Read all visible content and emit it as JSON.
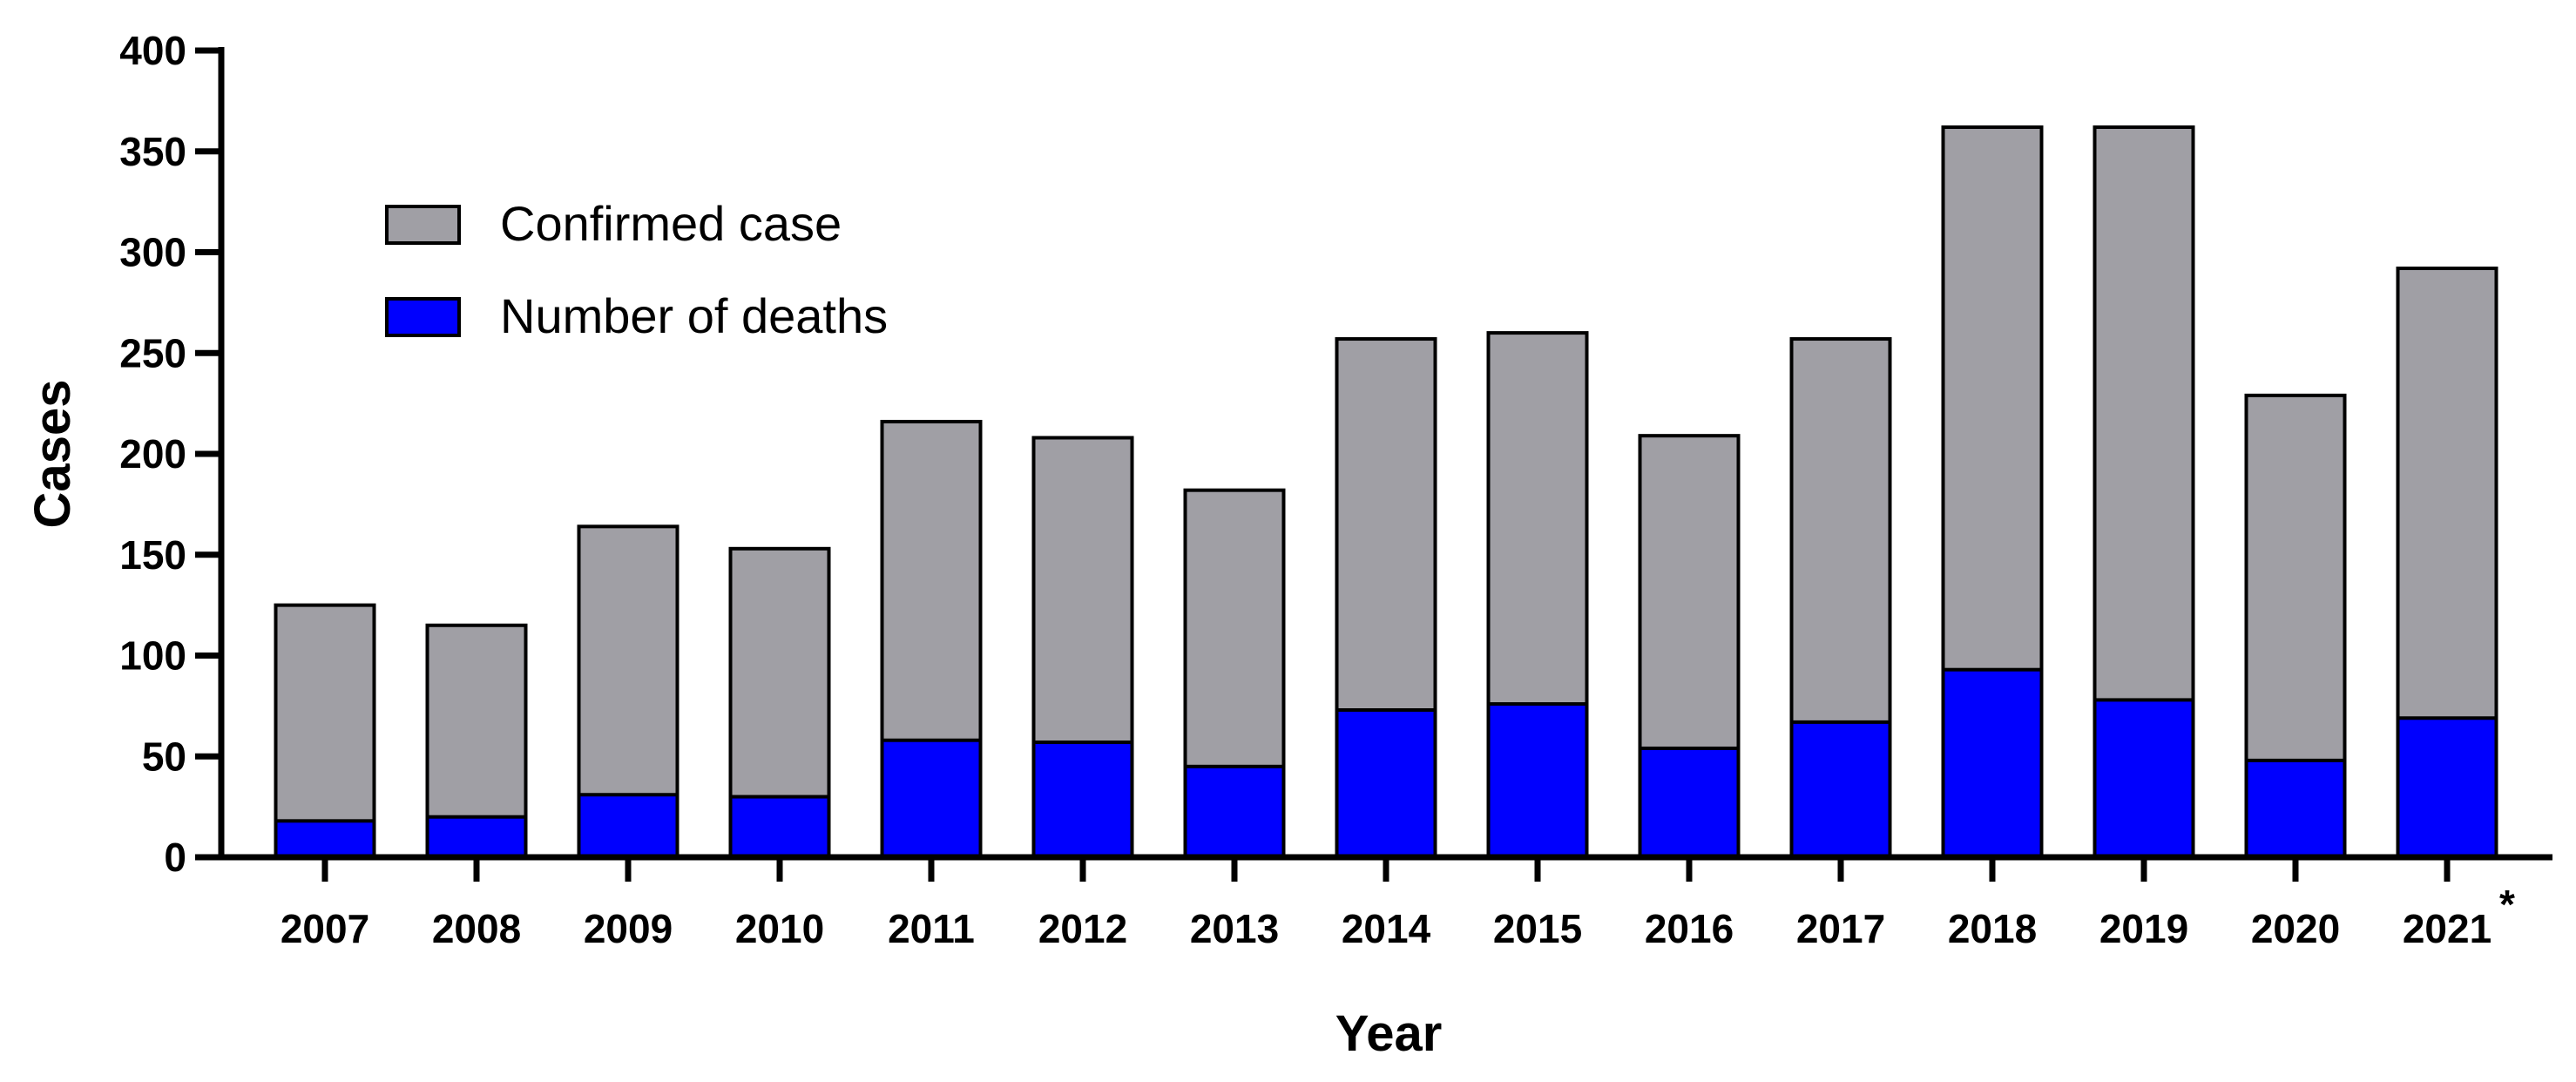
{
  "chart_data": {
    "type": "bar",
    "stacked": false,
    "overlaid": true,
    "title": "",
    "xlabel": "Year",
    "ylabel": "Cases",
    "ylim": [
      0,
      400
    ],
    "yticks": [
      0,
      50,
      100,
      150,
      200,
      250,
      300,
      350,
      400
    ],
    "categories": [
      "2007",
      "2008",
      "2009",
      "2010",
      "2011",
      "2012",
      "2013",
      "2014",
      "2015",
      "2016",
      "2017",
      "2018",
      "2019",
      "2020",
      "2021"
    ],
    "footnote_marker": {
      "category": "2021",
      "symbol": "*"
    },
    "series": [
      {
        "name": "Confirmed case",
        "color": "#a09fa5",
        "values": [
          125,
          115,
          164,
          153,
          216,
          208,
          182,
          257,
          260,
          209,
          257,
          362,
          362,
          229,
          292
        ]
      },
      {
        "name": "Number of deaths",
        "color": "#0000fe",
        "values": [
          18,
          20,
          31,
          30,
          58,
          57,
          45,
          73,
          76,
          54,
          67,
          93,
          78,
          48,
          69
        ]
      }
    ],
    "legend_position": "top-left",
    "grid": false
  }
}
